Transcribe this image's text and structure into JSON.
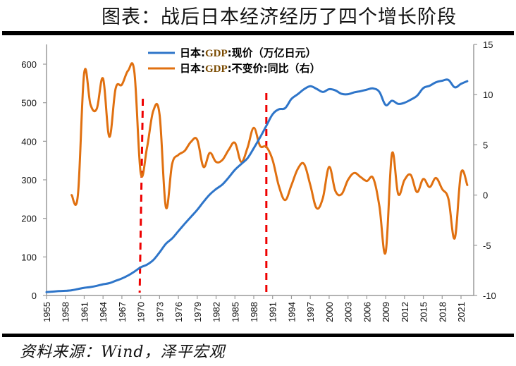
{
  "title": "图表：战后日本经济经历了四个增长阶段",
  "source": "资料来源：Wind，泽平宏观",
  "colors": {
    "nominal": "#2e75c9",
    "real_growth": "#e07010",
    "divider": "#ee0000",
    "axis": "#9a9a9a"
  },
  "chart_data": {
    "type": "line",
    "title": "图表：战后日本经济经历了四个增长阶段",
    "xlabel": "",
    "ylabel_left": "",
    "ylabel_right": "",
    "x_ticks": [
      "1955",
      "1958",
      "1961",
      "1964",
      "1967",
      "1970",
      "1973",
      "1976",
      "1979",
      "1982",
      "1985",
      "1988",
      "1991",
      "1994",
      "1997",
      "2000",
      "2003",
      "2006",
      "2009",
      "2012",
      "2015",
      "2018",
      "2021"
    ],
    "y_left": {
      "range": [
        0,
        650
      ],
      "ticks": [
        "0",
        "100",
        "200",
        "300",
        "400",
        "500",
        "600"
      ]
    },
    "y_right": {
      "range": [
        -10,
        15
      ],
      "ticks": [
        "-10",
        "-5",
        "0",
        "5",
        "10",
        "15"
      ]
    },
    "grid": false,
    "legend_position": "top-center",
    "dividers": [
      1970,
      1990
    ],
    "series": [
      {
        "name": "日本:GDP:现价（万亿日元）",
        "legend_prefix": "日本:",
        "legend_gdp": "GDP",
        "legend_suffix": ":现价（万亿日元）",
        "axis": "left",
        "x": [
          1955,
          1956,
          1957,
          1958,
          1959,
          1960,
          1961,
          1962,
          1963,
          1964,
          1965,
          1966,
          1967,
          1968,
          1969,
          1970,
          1971,
          1972,
          1973,
          1974,
          1975,
          1976,
          1977,
          1978,
          1979,
          1980,
          1981,
          1982,
          1983,
          1984,
          1985,
          1986,
          1987,
          1988,
          1989,
          1990,
          1991,
          1992,
          1993,
          1994,
          1995,
          1996,
          1997,
          1998,
          1999,
          2000,
          2001,
          2002,
          2003,
          2004,
          2005,
          2006,
          2007,
          2008,
          2009,
          2010,
          2011,
          2012,
          2013,
          2014,
          2015,
          2016,
          2017,
          2018,
          2019,
          2020,
          2021,
          2022
        ],
        "values": [
          8.6,
          10,
          11.3,
          12,
          13.5,
          16.7,
          20,
          22,
          25,
          29,
          32,
          38,
          44,
          52,
          62,
          73,
          80,
          92,
          112,
          134,
          148,
          167,
          186,
          204,
          222,
          243,
          262,
          276,
          288,
          306,
          326,
          341,
          356,
          382,
          410,
          440,
          470,
          483,
          486,
          510,
          522,
          535,
          543,
          536,
          528,
          535,
          532,
          523,
          522,
          527,
          530,
          534,
          537,
          528,
          494,
          505,
          497,
          500,
          508,
          518,
          538,
          544,
          553,
          557,
          559,
          540,
          549,
          556
        ]
      },
      {
        "name": "日本:GDP:不变价:同比（右）",
        "legend_prefix": "日本:",
        "legend_gdp": "GDP",
        "legend_suffix": ":不变价:同比（右）",
        "axis": "right",
        "x": [
          1959,
          1960,
          1961,
          1962,
          1963,
          1964,
          1965,
          1966,
          1967,
          1968,
          1969,
          1970,
          1971,
          1972,
          1973,
          1974,
          1975,
          1976,
          1977,
          1978,
          1979,
          1980,
          1981,
          1982,
          1983,
          1984,
          1985,
          1986,
          1987,
          1988,
          1989,
          1990,
          1991,
          1992,
          1993,
          1994,
          1995,
          1996,
          1997,
          1998,
          1999,
          2000,
          2001,
          2002,
          2003,
          2004,
          2005,
          2006,
          2007,
          2008,
          2009,
          2010,
          2011,
          2012,
          2013,
          2014,
          2015,
          2016,
          2017,
          2018,
          2019,
          2020,
          2021,
          2022
        ],
        "values": [
          0,
          0,
          12.2,
          9,
          8.6,
          11.6,
          5.8,
          10.6,
          11,
          12.4,
          12.2,
          2.2,
          4.7,
          8.4,
          8,
          -1.2,
          3.1,
          4,
          4.4,
          5.3,
          5.5,
          2.8,
          4.2,
          3.3,
          3.5,
          4.5,
          5.2,
          3.3,
          4.7,
          6.7,
          4.9,
          4.8,
          3.5,
          0.9,
          -0.5,
          1,
          2.6,
          3.1,
          1,
          -1.3,
          -0.3,
          2.8,
          0.4,
          0.1,
          1.5,
          2.2,
          1.8,
          1.4,
          1.7,
          -1.1,
          -5.7,
          4.1,
          0.1,
          1.5,
          2,
          0.3,
          1.6,
          0.8,
          1.7,
          0.6,
          -0.4,
          -4.3,
          2.2,
          1
        ]
      }
    ]
  }
}
